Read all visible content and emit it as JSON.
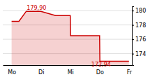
{
  "chart_data": {
    "type": "area",
    "x": [
      0.0,
      0.25,
      0.5,
      1.0,
      1.5,
      2.0,
      2.01,
      3.0,
      3.01,
      4.0
    ],
    "values": [
      178.5,
      178.5,
      179.9,
      179.9,
      179.3,
      179.3,
      176.5,
      176.5,
      172.94,
      172.94
    ],
    "color": "#cc0000",
    "xlim": [
      -0.3,
      4.1
    ],
    "xticks": [
      {
        "value": 0,
        "label": "Mo"
      },
      {
        "value": 1,
        "label": "Di"
      },
      {
        "value": 2,
        "label": "Mi"
      },
      {
        "value": 3,
        "label": "Do"
      },
      {
        "value": 4,
        "label": "Fr"
      }
    ],
    "ylim": [
      172.4,
      180.6
    ],
    "yticks": [
      174,
      176,
      178,
      180
    ],
    "grid": true,
    "annotations": [
      {
        "text": "179,90",
        "x": 0.85,
        "y": 179.9
      },
      {
        "text": "172,94",
        "x": 3.05,
        "y": 172.94
      }
    ]
  }
}
